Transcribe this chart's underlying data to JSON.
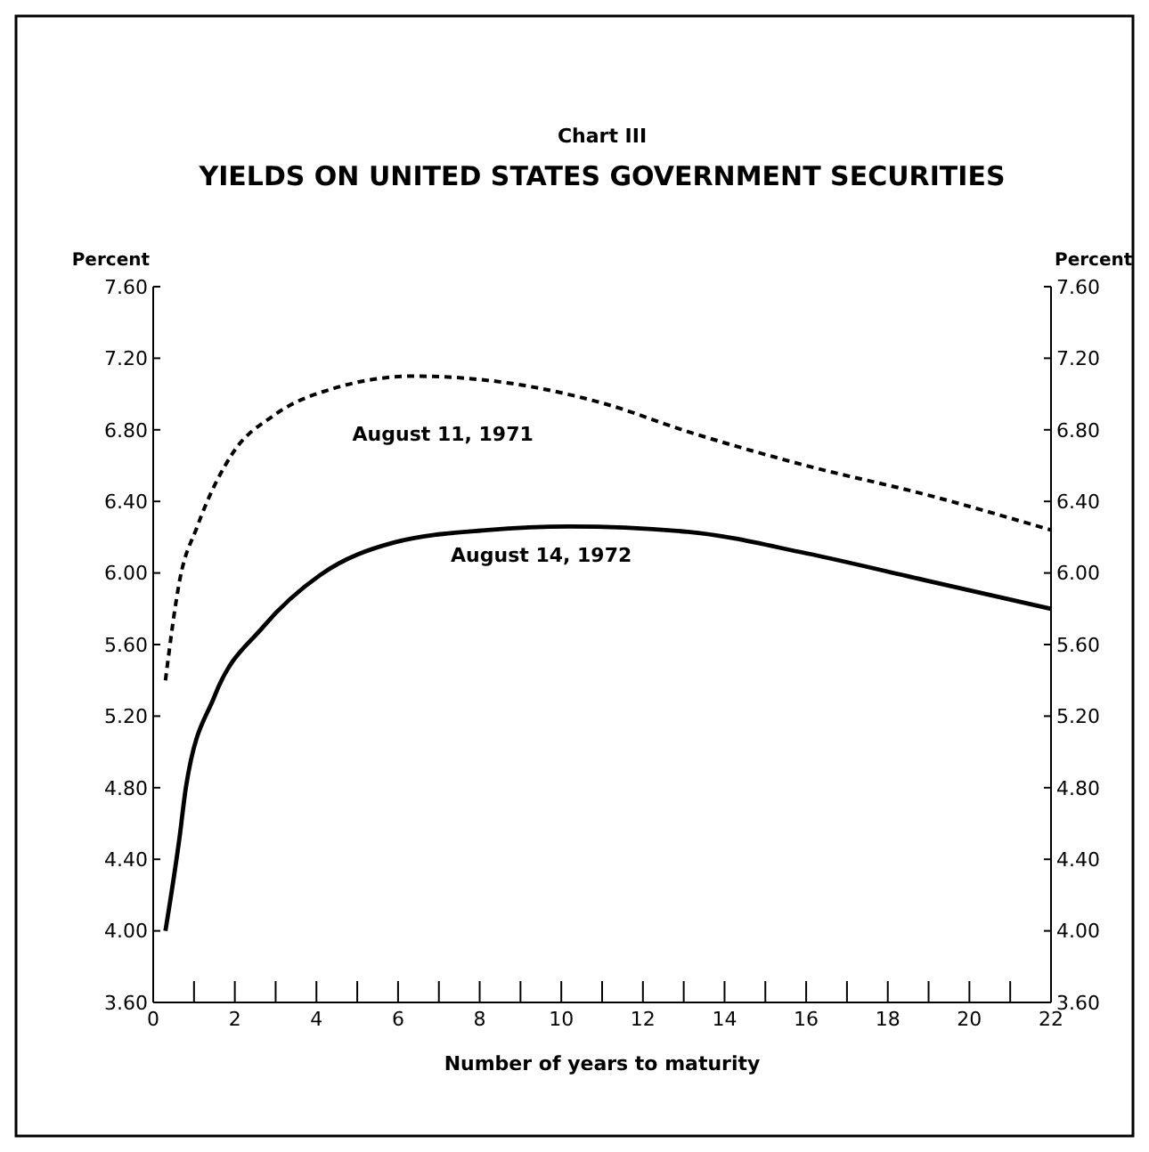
{
  "chart_data": {
    "type": "line",
    "subtitle": "Chart III",
    "title": "YIELDS ON UNITED STATES GOVERNMENT SECURITIES",
    "xlabel": "Number of years to maturity",
    "ylabel": "Percent",
    "y2label": "Percent",
    "xlim": [
      0,
      22
    ],
    "xticks": [
      0,
      {
        "value": 1,
        "label": null
      },
      2,
      {
        "value": 3,
        "label": null
      },
      4,
      {
        "value": 5,
        "label": null
      },
      6,
      {
        "value": 7,
        "label": null
      },
      8,
      {
        "value": 9,
        "label": null
      },
      10,
      {
        "value": 11,
        "label": null
      },
      12,
      {
        "value": 13,
        "label": null
      },
      14,
      {
        "value": 15,
        "label": null
      },
      16,
      {
        "value": 17,
        "label": null
      },
      18,
      {
        "value": 19,
        "label": null
      },
      20,
      {
        "value": 21,
        "label": null
      },
      22
    ],
    "ylim": [
      3.6,
      7.6
    ],
    "yticks": [
      {
        "value": 3.6,
        "label": "3.60"
      },
      {
        "value": 4,
        "label": "4.00"
      },
      {
        "value": 4.4,
        "label": "4.40"
      },
      {
        "value": 4.8,
        "label": "4.80"
      },
      {
        "value": 5.2,
        "label": "5.20"
      },
      {
        "value": 5.6,
        "label": "5.60"
      },
      {
        "value": 6,
        "label": "6.00"
      },
      {
        "value": 6.4,
        "label": "6.40"
      },
      {
        "value": 6.8,
        "label": "6.80"
      },
      {
        "value": 7.2,
        "label": "7.20"
      },
      {
        "value": 7.6,
        "label": "7.60"
      }
    ],
    "y2lim": [
      3.6,
      7.6
    ],
    "y2ticks": [
      {
        "value": 3.6,
        "label": "3.60"
      },
      {
        "value": 4,
        "label": "4.00"
      },
      {
        "value": 4.4,
        "label": "4.40"
      },
      {
        "value": 4.8,
        "label": "4.80"
      },
      {
        "value": 5.2,
        "label": "5.20"
      },
      {
        "value": 5.6,
        "label": "5.60"
      },
      {
        "value": 6,
        "label": "6.00"
      },
      {
        "value": 6.4,
        "label": "6.40"
      },
      {
        "value": 6.8,
        "label": "6.80"
      },
      {
        "value": 7.2,
        "label": "7.20"
      },
      {
        "value": 7.6,
        "label": "7.60"
      }
    ],
    "grid": false,
    "marker": "none",
    "series": [
      {
        "name": "August 11, 1971",
        "color": "#000000",
        "line_style": "dashed",
        "x": [
          0.3,
          0.65,
          1.08,
          1.95,
          2.95,
          4.4,
          6.4,
          8.75,
          11,
          13.1,
          16,
          18.9,
          22
        ],
        "values": [
          5.4,
          5.96,
          6.26,
          6.67,
          6.88,
          7.03,
          7.1,
          7.06,
          6.95,
          6.79,
          6.6,
          6.44,
          6.24
        ]
      },
      {
        "name": "August 14, 1972",
        "color": "#000000",
        "line_style": "solid",
        "x": [
          0.3,
          0.65,
          0.8,
          1.5,
          2.7,
          4.1,
          5.9,
          8.2,
          10.2,
          13.1,
          16,
          18.9,
          22
        ],
        "values": [
          4.0,
          4.53,
          4.8,
          5.31,
          5.7,
          5.99,
          6.17,
          6.24,
          6.26,
          6.23,
          6.11,
          5.96,
          5.8
        ]
      }
    ]
  }
}
